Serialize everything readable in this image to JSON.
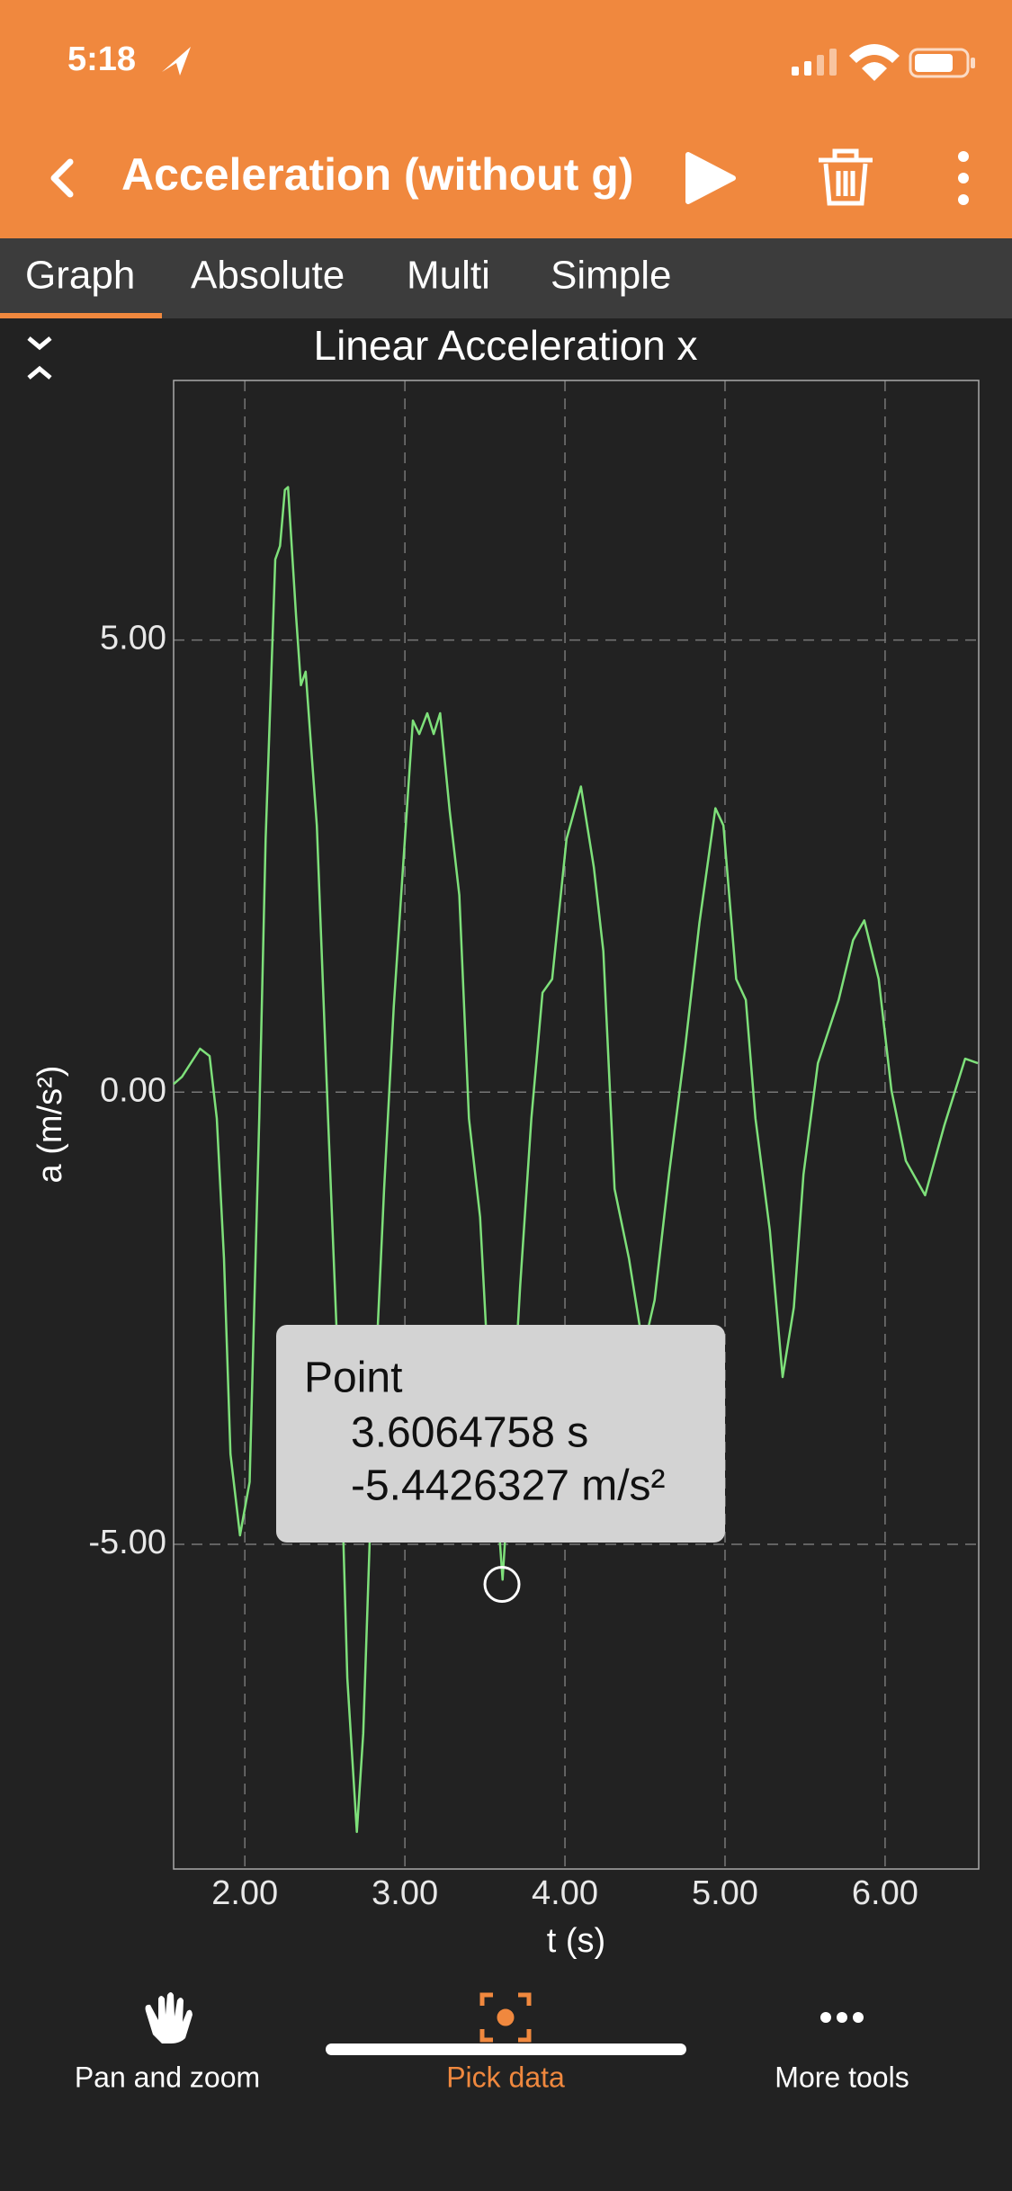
{
  "status_bar": {
    "time": "5:18"
  },
  "header": {
    "title": "Acceleration (without g)"
  },
  "tabs": [
    "Graph",
    "Absolute",
    "Multi",
    "Simple"
  ],
  "chart_data": {
    "type": "line",
    "title": "Linear Acceleration x",
    "x_label": "t (s)",
    "y_label": "a (m/s²)",
    "color": "#7ee07a",
    "xlim": [
      1.555,
      6.585
    ],
    "ylim": [
      -8.59,
      7.87
    ],
    "xticks": [
      {
        "value": 2,
        "label": "2.00"
      },
      {
        "value": 3,
        "label": "3.00"
      },
      {
        "value": 4,
        "label": "4.00"
      },
      {
        "value": 5,
        "label": "5.00"
      },
      {
        "value": 6,
        "label": "6.00"
      }
    ],
    "yticks": [
      {
        "value": 5,
        "label": "5.00"
      },
      {
        "value": 0,
        "label": "0.00"
      },
      {
        "value": -5,
        "label": "-5.00"
      }
    ],
    "grid": true,
    "x": [
      1.555,
      1.607,
      1.72,
      1.78,
      1.825,
      1.87,
      1.91,
      1.97,
      2.03,
      2.09,
      2.13,
      2.19,
      2.22,
      2.25,
      2.27,
      2.32,
      2.35,
      2.38,
      2.45,
      2.52,
      2.59,
      2.64,
      2.7,
      2.74,
      2.81,
      2.87,
      2.93,
      3.0,
      3.05,
      3.09,
      3.14,
      3.18,
      3.22,
      3.28,
      3.34,
      3.4,
      3.47,
      3.53,
      3.61,
      3.67,
      3.72,
      3.79,
      3.86,
      3.92,
      4.01,
      4.1,
      4.18,
      4.24,
      4.31,
      4.4,
      4.49,
      4.56,
      4.65,
      4.75,
      4.84,
      4.94,
      4.99,
      5.07,
      5.13,
      5.19,
      5.28,
      5.36,
      5.43,
      5.49,
      5.58,
      5.71,
      5.8,
      5.87,
      5.96,
      6.04,
      6.13,
      6.25,
      6.37,
      6.5,
      6.58
    ],
    "values": [
      0.09,
      0.17,
      0.48,
      0.4,
      -0.29,
      -1.84,
      -4.0,
      -4.9,
      -4.31,
      -0.29,
      2.8,
      5.89,
      6.04,
      6.66,
      6.69,
      5.27,
      4.5,
      4.65,
      2.95,
      -0.29,
      -3.38,
      -6.48,
      -8.18,
      -7.09,
      -3.38,
      -1.07,
      0.94,
      2.8,
      4.11,
      3.96,
      4.19,
      3.96,
      4.19,
      3.11,
      2.18,
      -0.29,
      -1.38,
      -3.38,
      -5.39,
      -3.69,
      -2.15,
      -0.29,
      1.1,
      1.25,
      2.8,
      3.38,
      2.49,
      1.56,
      -1.07,
      -1.84,
      -2.84,
      -2.3,
      -0.91,
      0.48,
      1.87,
      3.14,
      2.95,
      1.25,
      1.02,
      -0.29,
      -1.53,
      -3.15,
      -2.38,
      -0.91,
      0.32,
      1.02,
      1.68,
      1.9,
      1.25,
      0.02,
      -0.76,
      -1.14,
      -0.37,
      0.37,
      0.32
    ],
    "annotation": {
      "title": "Point",
      "lines": [
        "3.6064758 s",
        "-5.4426327 m/s²"
      ],
      "x": 3.6064758,
      "y": -5.4426327
    }
  },
  "toolbar": [
    "Pan and zoom",
    "Pick data",
    "More tools"
  ]
}
